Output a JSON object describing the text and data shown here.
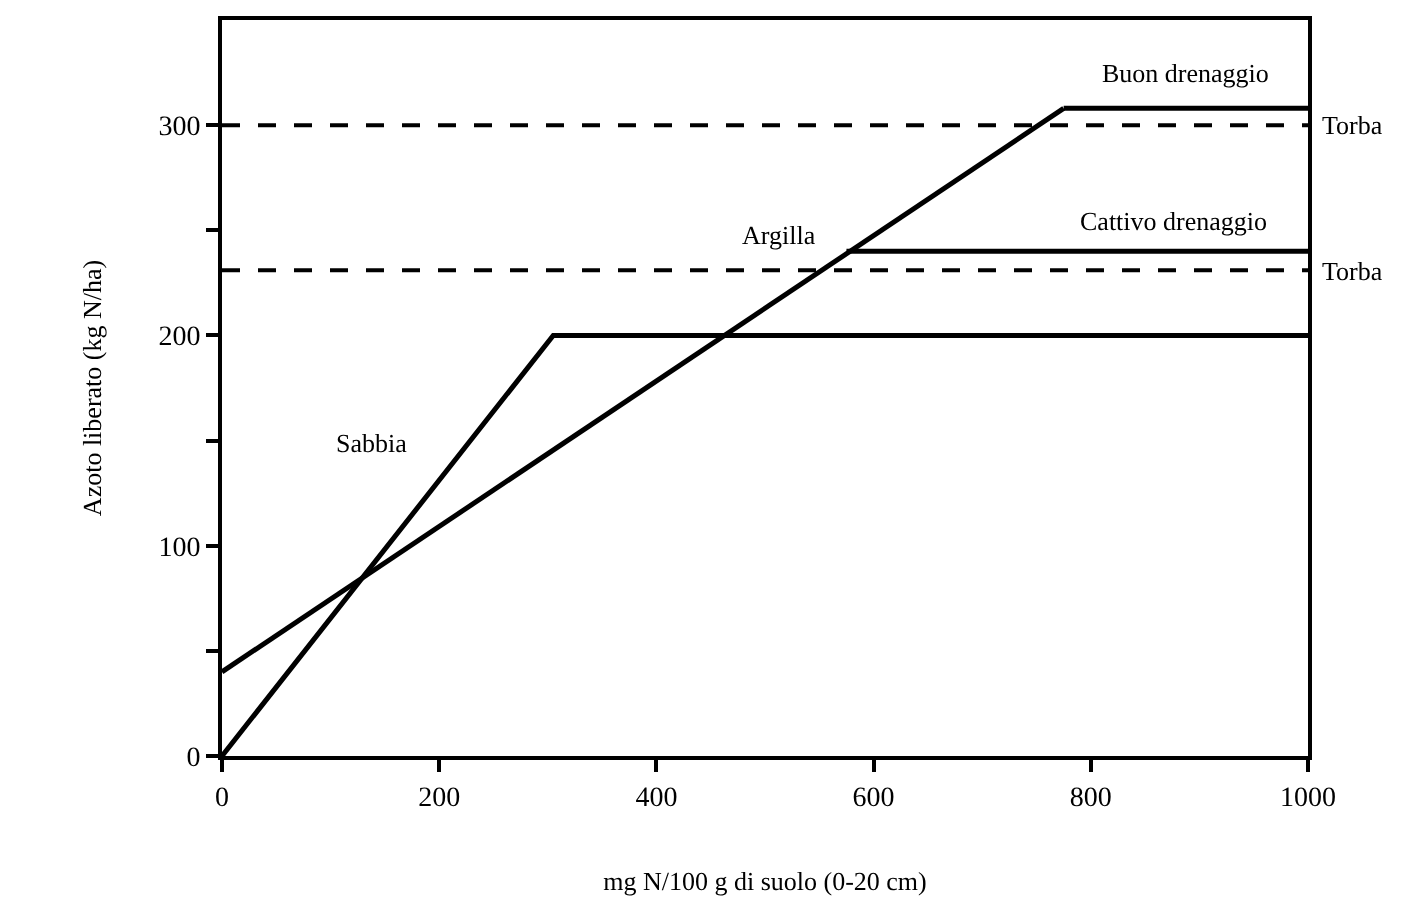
{
  "chart_data": {
    "type": "line",
    "xlabel": "mg N/100 g di suolo (0-20 cm)",
    "ylabel": "Azoto liberato (kg N/ha)",
    "series": [
      {
        "name": "Sabbia",
        "x": [
          0,
          305,
          1000
        ],
        "values": [
          0,
          200,
          200
        ],
        "color": "#000000"
      },
      {
        "name": "Argilla",
        "x": [
          0,
          775
        ],
        "values": [
          40,
          308
        ],
        "color": "#000000"
      },
      {
        "name": "Buon drenaggio",
        "x": [
          775,
          1000
        ],
        "values": [
          308,
          308
        ],
        "color": "#000000"
      },
      {
        "name": "Cattivo drenaggio",
        "x": [
          575,
          1000
        ],
        "values": [
          240,
          240
        ],
        "color": "#000000"
      }
    ],
    "ref_lines": [
      {
        "axis": "y",
        "value": 300,
        "label": "Torba",
        "color": "#000000",
        "line_style": "dashed"
      },
      {
        "axis": "y",
        "value": 231,
        "label": "Torba",
        "color": "#000000",
        "line_style": "dashed"
      }
    ],
    "xlim": [
      0,
      1000
    ],
    "ylim": [
      0,
      350
    ],
    "xticks": [
      0,
      200,
      400,
      600,
      800,
      1000
    ],
    "yticks": [
      0,
      {
        "value": 50,
        "label": null
      },
      100,
      {
        "value": 150,
        "label": null
      },
      200,
      {
        "value": 250,
        "label": null
      },
      300
    ],
    "grid": false,
    "legend": false,
    "marker": "none",
    "line_style": "solid"
  }
}
